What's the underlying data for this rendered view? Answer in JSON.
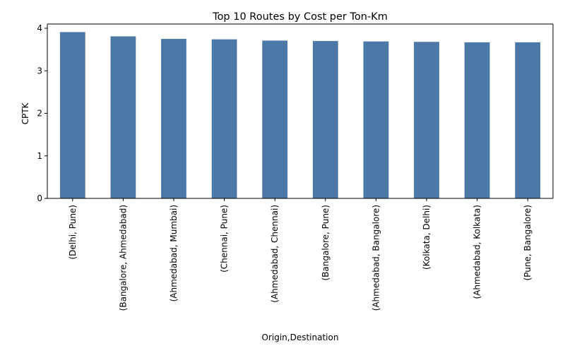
{
  "chart_data": {
    "type": "bar",
    "title": "Top 10 Routes by Cost per Ton-Km",
    "xlabel": "Origin,Destination",
    "ylabel": "CPTK",
    "categories": [
      "(Delhi, Pune)",
      "(Bangalore, Ahmedabad)",
      "(Ahmedabad, Mumbai)",
      "(Chennai, Pune)",
      "(Ahmedabad, Chennai)",
      "(Bangalore, Pune)",
      "(Ahmedabad, Bangalore)",
      "(Kolkata, Delhi)",
      "(Ahmedabad, Kolkata)",
      "(Pune, Bangalore)"
    ],
    "values": [
      3.91,
      3.81,
      3.75,
      3.74,
      3.71,
      3.7,
      3.69,
      3.68,
      3.67,
      3.67
    ],
    "ylim": [
      0,
      4.1
    ],
    "yticks": [
      0,
      1,
      2,
      3,
      4
    ],
    "grid": false,
    "legend": false,
    "bar_color": "#4c78a8"
  }
}
